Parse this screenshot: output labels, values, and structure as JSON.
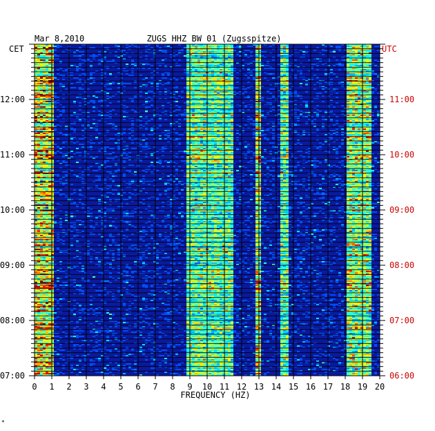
{
  "header": {
    "date": "Mar 8,2010",
    "station": "ZUGS HHZ BW 01 (Zugsspitze)",
    "left_tz": "CET",
    "right_tz": "UTC"
  },
  "colors": {
    "background": "#ffffff",
    "plot_bg": "#0a1a9e",
    "grid": "#000000",
    "text": "#000000",
    "utc_text": "#cc0000"
  },
  "corner_mark": "*",
  "chart_data": {
    "type": "heatmap",
    "title": "ZUGS HHZ BW 01 (Zugsspitze)",
    "xlabel": "FREQUENCY (HZ)",
    "ylabel": "",
    "xlim": [
      0,
      20
    ],
    "x_ticks": [
      "0",
      "1",
      "2",
      "3",
      "4",
      "5",
      "6",
      "7",
      "8",
      "9",
      "10",
      "11",
      "12",
      "13",
      "14",
      "15",
      "16",
      "17",
      "18",
      "19",
      "20"
    ],
    "y_ticks_left": [
      "12:00",
      "11:00",
      "10:00",
      "09:00",
      "08:00",
      "07:00"
    ],
    "y_ticks_right": [
      "11:00",
      "10:00",
      "09:00",
      "08:00",
      "07:00",
      "06:00"
    ],
    "y_tick_hours_cet": [
      12,
      11,
      10,
      9,
      8,
      7
    ],
    "ylim_cet_hours": [
      7.0,
      13.0
    ],
    "colormap": "jet",
    "features": [
      {
        "freq_min": 0.0,
        "freq_max": 1.0,
        "intensity": 0.9,
        "description_hz_band": "0-1"
      },
      {
        "freq_min": 8.8,
        "freq_max": 11.5,
        "intensity": 0.6,
        "description_hz_band": "9-11.5"
      },
      {
        "freq_min": 12.7,
        "freq_max": 13.0,
        "intensity": 0.8,
        "description_hz_band": "12.8"
      },
      {
        "freq_min": 14.2,
        "freq_max": 14.6,
        "intensity": 0.6,
        "description_hz_band": "14.4"
      },
      {
        "freq_min": 18.0,
        "freq_max": 19.5,
        "intensity": 0.7,
        "description_hz_band": "18-19.5"
      }
    ]
  }
}
